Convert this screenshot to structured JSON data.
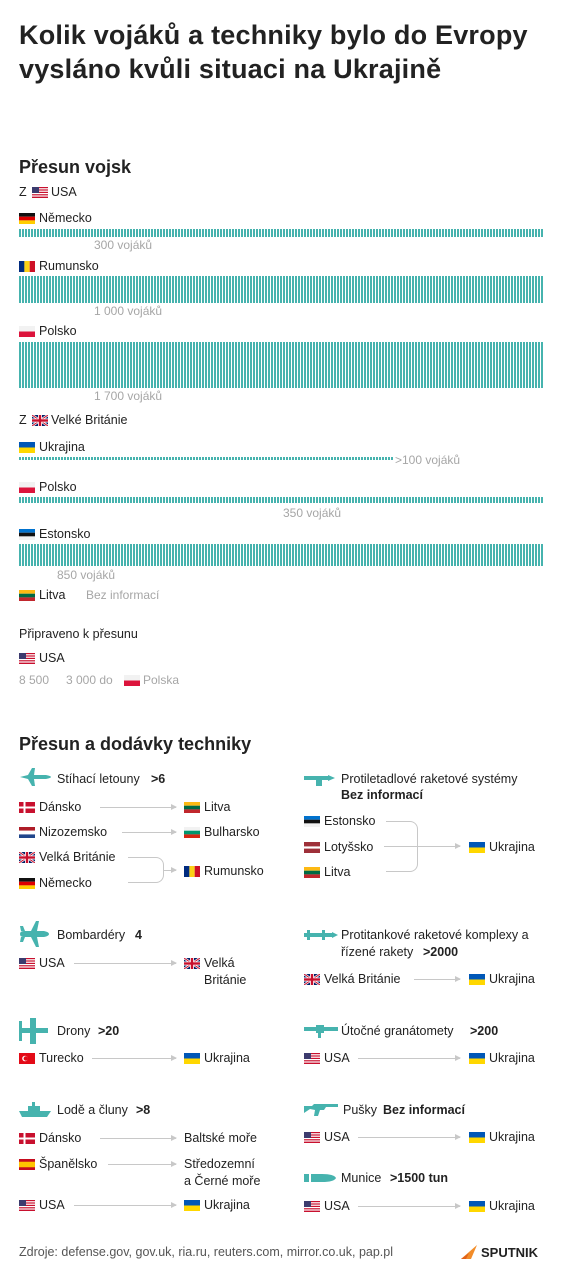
{
  "title": "Kolik vojáků a techniky bylo do Evropy vysláno kvůli situaci na Ukrajině",
  "troops": {
    "heading": "Přesun vojsk",
    "from_prefix": "Z",
    "usa": "USA",
    "germany": "Německo",
    "germany_count": "300 vojáků",
    "romania": "Rumunsko",
    "romania_count": "1 000 vojáků",
    "poland": "Polsko",
    "poland_count": "1 700 vojáků",
    "uk": "Velké Británie",
    "ukraine": "Ukrajina",
    "ukraine_count": ">100 vojáků",
    "poland2": "Polsko",
    "poland2_count": "350 vojáků",
    "estonia": "Estonsko",
    "estonia_count": "850 vojáků",
    "lithuania": "Litva",
    "lithuania_note": "Bez informací",
    "ready_label": "Připraveno k přesunu",
    "ready_country": "USA",
    "ready_count": "8 500",
    "ready_detail": "3 000 do",
    "ready_dest": "Polska"
  },
  "equipment": {
    "heading": "Přesun a dodávky techniky",
    "fighters": {
      "label": "Stíhací letouny",
      "count": ">6",
      "rows": [
        {
          "from": "Dánsko",
          "to": "Litva"
        },
        {
          "from": "Nizozemsko",
          "to": "Bulharsko"
        },
        {
          "from": "Velká Británie",
          "to": "Rumunsko"
        },
        {
          "from": "Německo"
        }
      ]
    },
    "aa": {
      "label": "Protiletadlové raketové systémy",
      "count": "Bez informací",
      "from": [
        "Estonsko",
        "Lotyšsko",
        "Litva"
      ],
      "to": "Ukrajina"
    },
    "bombers": {
      "label": "Bombardéry",
      "count": "4",
      "from": "USA",
      "to_1": "Velká",
      "to_2": "Británie"
    },
    "antitank": {
      "label_1": "Protitankové raketové komplexy a",
      "label_2": "řízené rakety",
      "count": ">2000",
      "from": "Velká Británie",
      "to": "Ukrajina"
    },
    "drones": {
      "label": "Drony",
      "count": ">20",
      "from": "Turecko",
      "to": "Ukrajina"
    },
    "grenade": {
      "label": "Útočné granátomety",
      "count": ">200",
      "from": "USA",
      "to": "Ukrajina"
    },
    "ships": {
      "label": "Lodě a čluny",
      "count": ">8",
      "rows": [
        {
          "from": "Dánsko",
          "to": "Baltské moře"
        },
        {
          "from": "Španělsko",
          "to_1": "Středozemní",
          "to_2": "a Černé moře"
        },
        {
          "from": "USA",
          "to": "Ukrajina"
        }
      ]
    },
    "rifles": {
      "label": "Pušky",
      "count": "Bez informací",
      "from": "USA",
      "to": "Ukrajina"
    },
    "ammo": {
      "label": "Munice",
      "count": ">1500 tun",
      "from": "USA",
      "to": "Ukrajina"
    }
  },
  "footer": {
    "sources": "Zdroje: defense.gov, gov.uk, ria.ru, reuters.com, mirror.co.uk, pap.pl",
    "brand": "SPUTNIK"
  },
  "colors": {
    "accent": "#46b3ae",
    "text": "#222222",
    "muted": "#a6a6a6"
  }
}
